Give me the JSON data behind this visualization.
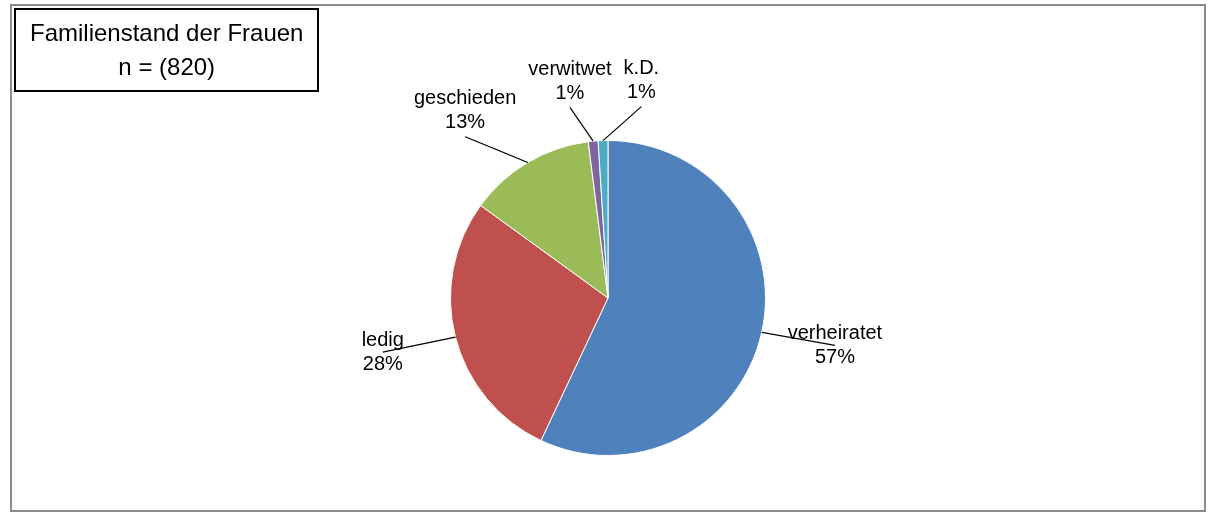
{
  "chart_data": {
    "type": "pie",
    "title": "Familienstand der Frauen",
    "subtitle": "n = (820)",
    "categories": [
      "verheiratet",
      "ledig",
      "geschieden",
      "verwitwet",
      "k.D."
    ],
    "values": [
      57,
      28,
      13,
      1,
      1
    ],
    "value_labels": [
      "57%",
      "28%",
      "13%",
      "1%",
      "1%"
    ],
    "colors": [
      "#4f81bd",
      "#c0504d",
      "#9bbb59",
      "#8064a2",
      "#4bacc6"
    ],
    "legend": false
  }
}
